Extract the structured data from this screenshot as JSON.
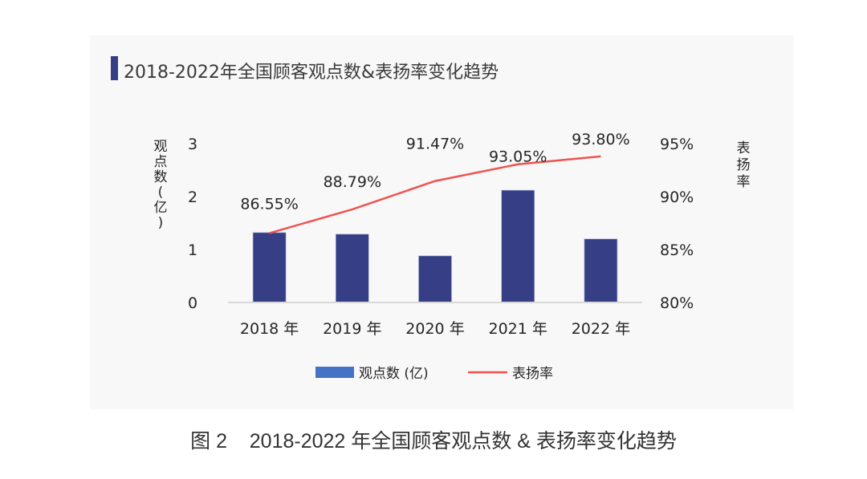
{
  "panel_title": "2018-2022年全国顾客观点数&表扬率变化趋势",
  "caption": "图 2    2018-2022 年全国顾客观点数 & 表扬率变化趋势",
  "colors": {
    "bar": "#363f86",
    "line": "#ef5350",
    "legend_bar": "#4472c4",
    "accent": "#363f86"
  },
  "chart_data": {
    "type": "bar",
    "title": "2018-2022年全国顾客观点数&表扬率变化趋势",
    "categories": [
      "2018 年",
      "2019 年",
      "2020 年",
      "2021 年",
      "2022 年"
    ],
    "series": [
      {
        "name": "观点数 (亿)",
        "type": "bar",
        "axis": "left",
        "values": [
          1.32,
          1.29,
          0.88,
          2.12,
          1.2
        ]
      },
      {
        "name": "表扬率",
        "type": "line",
        "axis": "right",
        "values": [
          86.55,
          88.79,
          91.47,
          93.05,
          93.8
        ],
        "labels": [
          "86.55%",
          "88.79%",
          "91.47%",
          "93.05%",
          "93.80%"
        ]
      }
    ],
    "ylabel": "观点数(亿)",
    "y2label": "表扬率",
    "ylim": [
      0,
      3
    ],
    "yticks": [
      "0",
      "1",
      "2",
      "3"
    ],
    "y2lim": [
      80,
      95
    ],
    "y2ticks": [
      "80%",
      "85%",
      "90%",
      "95%"
    ],
    "grid": false,
    "legend_position": "bottom"
  }
}
